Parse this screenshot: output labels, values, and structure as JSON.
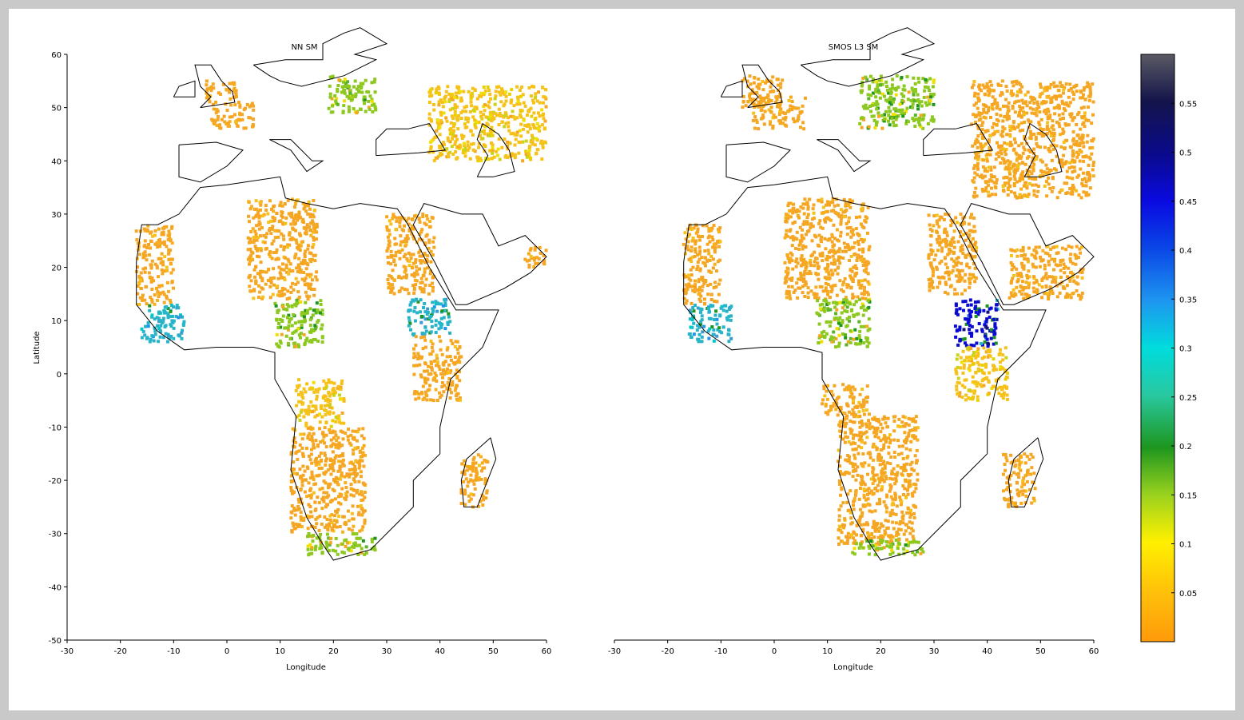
{
  "panels": [
    {
      "title": "NN SM",
      "xlabel": "Longitude",
      "ylabel": "Latitude",
      "x_ticks": [
        -30,
        -20,
        -10,
        0,
        10,
        20,
        30,
        40,
        50,
        60
      ],
      "y_ticks": [
        60,
        50,
        40,
        30,
        20,
        10,
        0,
        -10,
        -20,
        -30,
        -40,
        -50
      ],
      "xlim": [
        -30,
        60
      ],
      "ylim": [
        -50,
        60
      ]
    },
    {
      "title": "SMOS L3 SM",
      "xlabel": "Longitude",
      "ylabel": "",
      "x_ticks": [
        -30,
        -20,
        -10,
        0,
        10,
        20,
        30,
        40,
        50,
        60
      ],
      "y_ticks": [],
      "xlim": [
        -30,
        60
      ],
      "ylim": [
        -50,
        60
      ]
    }
  ],
  "colorbar": {
    "ticks": [
      0.05,
      0.1,
      0.15,
      0.2,
      0.25,
      0.3,
      0.35,
      0.4,
      0.45,
      0.5,
      0.55
    ],
    "tick_labels": [
      "0.05",
      "0.1",
      "0.15",
      "0.2",
      "0.25",
      "0.3",
      "0.35",
      "0.4",
      "0.45",
      "0.5",
      "0.55"
    ],
    "range": [
      0,
      0.6
    ],
    "colors": [
      "#ffa00a",
      "#ffee00",
      "#8cc81e",
      "#1e961e",
      "#00d2c8",
      "#2896f0",
      "#0a00d2",
      "#141450",
      "#505064"
    ]
  },
  "map_style": {
    "coastline_color": "#000000",
    "dominant_color": "#f5a623"
  }
}
